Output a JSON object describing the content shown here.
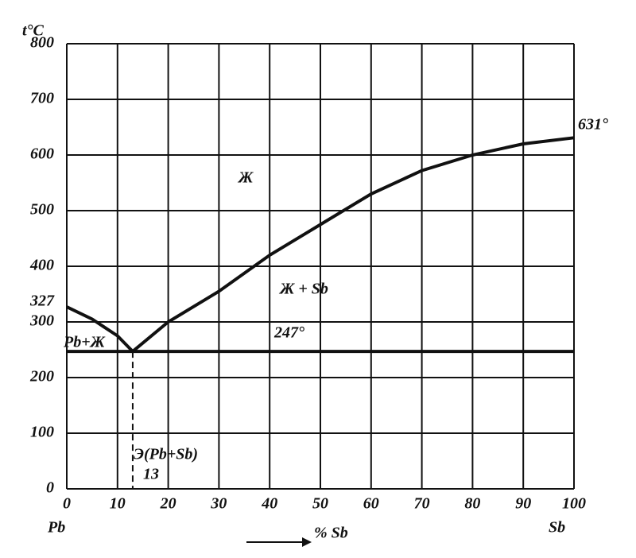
{
  "chart_data": {
    "type": "line",
    "y_label": "t°C",
    "x_label": "% Sb",
    "x_start_label": "Pb",
    "x_end_label": "Sb",
    "xlim": [
      0,
      100
    ],
    "xticks": [
      0,
      10,
      20,
      30,
      40,
      50,
      60,
      70,
      80,
      90,
      100
    ],
    "ylim": [
      0,
      800
    ],
    "yticks": [
      0,
      100,
      200,
      300,
      400,
      500,
      600,
      700,
      800
    ],
    "grid": true,
    "extra_ytick": 327,
    "series": [
      {
        "color": "#111",
        "x": [
          0,
          5,
          10,
          13
        ],
        "values": [
          327,
          305,
          275,
          247
        ]
      },
      {
        "color": "#111",
        "x": [
          13,
          20,
          30,
          40,
          50,
          60,
          70,
          80,
          90,
          100
        ],
        "values": [
          247,
          300,
          355,
          420,
          475,
          530,
          572,
          600,
          620,
          631
        ]
      },
      {
        "color": "#111",
        "x": [
          0,
          100
        ],
        "values": [
          247,
          247
        ]
      },
      {
        "color": "#111",
        "dash": true,
        "x": [
          13,
          13
        ],
        "values": [
          247,
          0
        ]
      }
    ],
    "annotations": [
      "Ж",
      "Ж + Sb",
      "Pb+Ж",
      "247°",
      "631°",
      "Э(Pb+Sb)",
      "13"
    ]
  }
}
